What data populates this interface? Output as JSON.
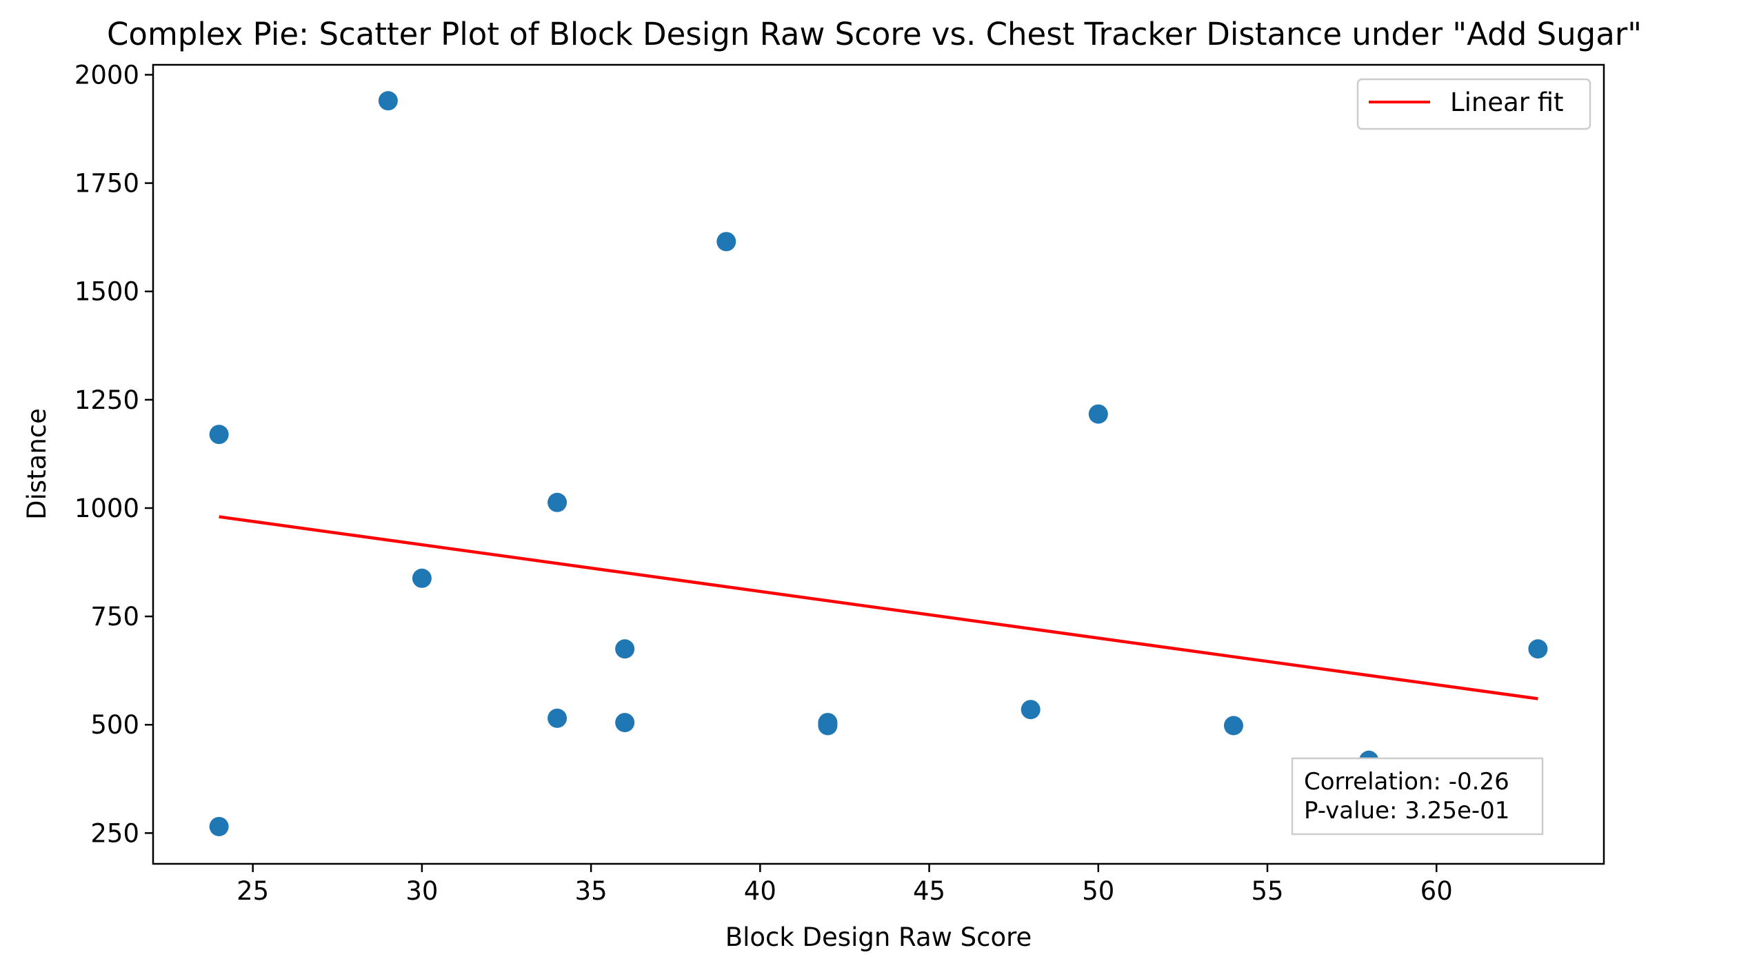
{
  "chart_data": {
    "type": "scatter",
    "title": "Complex Pie: Scatter Plot of Block Design Raw Score vs. Chest Tracker Distance under \"Add Sugar\"",
    "xlabel": "Block Design Raw Score",
    "ylabel": "Distance",
    "xlim": [
      22.05,
      64.95
    ],
    "ylim": [
      179,
      2023
    ],
    "xticks": [
      25,
      30,
      35,
      40,
      45,
      50,
      55,
      60
    ],
    "yticks": [
      250,
      500,
      750,
      1000,
      1250,
      1500,
      1750,
      2000
    ],
    "grid": false,
    "legend_position": "top-right",
    "series": [
      {
        "type": "scatter",
        "color": "#1f77b4",
        "points": [
          {
            "x": 24,
            "y": 1170
          },
          {
            "x": 24,
            "y": 265
          },
          {
            "x": 29,
            "y": 1940
          },
          {
            "x": 30,
            "y": 838
          },
          {
            "x": 34,
            "y": 1013
          },
          {
            "x": 34,
            "y": 515
          },
          {
            "x": 36,
            "y": 675
          },
          {
            "x": 36,
            "y": 505
          },
          {
            "x": 39,
            "y": 1615
          },
          {
            "x": 42,
            "y": 505
          },
          {
            "x": 42,
            "y": 498
          },
          {
            "x": 48,
            "y": 535
          },
          {
            "x": 50,
            "y": 1217
          },
          {
            "x": 54,
            "y": 498
          },
          {
            "x": 58,
            "y": 418
          },
          {
            "x": 63,
            "y": 675
          }
        ]
      },
      {
        "type": "line",
        "name": "Linear fit",
        "color": "#ff0000",
        "points": [
          {
            "x": 24,
            "y": 980
          },
          {
            "x": 63,
            "y": 560
          }
        ]
      }
    ],
    "annotation": {
      "lines": [
        "Correlation: -0.26",
        "P-value: 3.25e-01"
      ],
      "position": "bottom-right"
    }
  }
}
